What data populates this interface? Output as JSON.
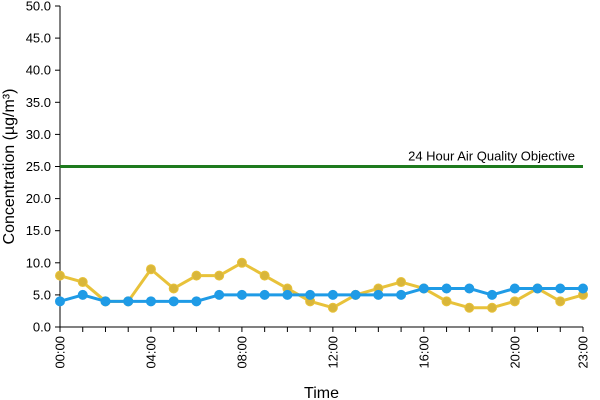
{
  "chart_data": {
    "type": "line",
    "title": "",
    "xlabel": "Time",
    "ylabel": "Concentration (µg/m³)",
    "ylim": [
      0,
      50
    ],
    "yticks": [
      "0.0",
      "5.0",
      "10.0",
      "15.0",
      "20.0",
      "25.0",
      "30.0",
      "35.0",
      "40.0",
      "45.0",
      "50.0"
    ],
    "x": [
      0,
      1,
      2,
      3,
      4,
      5,
      6,
      7,
      8,
      9,
      10,
      11,
      12,
      13,
      14,
      15,
      16,
      17,
      18,
      19,
      20,
      21,
      22,
      23
    ],
    "xtick_labels": [
      {
        "x": 0,
        "label": "00:00"
      },
      {
        "x": 4,
        "label": "04:00"
      },
      {
        "x": 8,
        "label": "08:00"
      },
      {
        "x": 12,
        "label": "12:00"
      },
      {
        "x": 16,
        "label": "16:00"
      },
      {
        "x": 20,
        "label": "20:00"
      },
      {
        "x": 23,
        "label": "23:00"
      }
    ],
    "series": [
      {
        "color": "#1f9be6",
        "marker_color": "#1f9be6",
        "values": [
          4,
          5,
          4,
          4,
          4,
          4,
          4,
          5,
          5,
          5,
          5,
          5,
          5,
          5,
          5,
          5,
          6,
          6,
          6,
          5,
          6,
          6,
          6,
          6
        ]
      },
      {
        "color": "#e8c23a",
        "marker_color": "#d9b63a",
        "values": [
          8,
          7,
          4,
          4,
          9,
          6,
          8,
          8,
          10,
          8,
          6,
          4,
          3,
          5,
          6,
          7,
          6,
          4,
          3,
          3,
          4,
          6,
          4,
          5
        ]
      }
    ],
    "reference_line": {
      "value": 25,
      "label": "24 Hour Air Quality Objective",
      "color": "#1e7a1e"
    },
    "grid": false,
    "legend": "none"
  }
}
